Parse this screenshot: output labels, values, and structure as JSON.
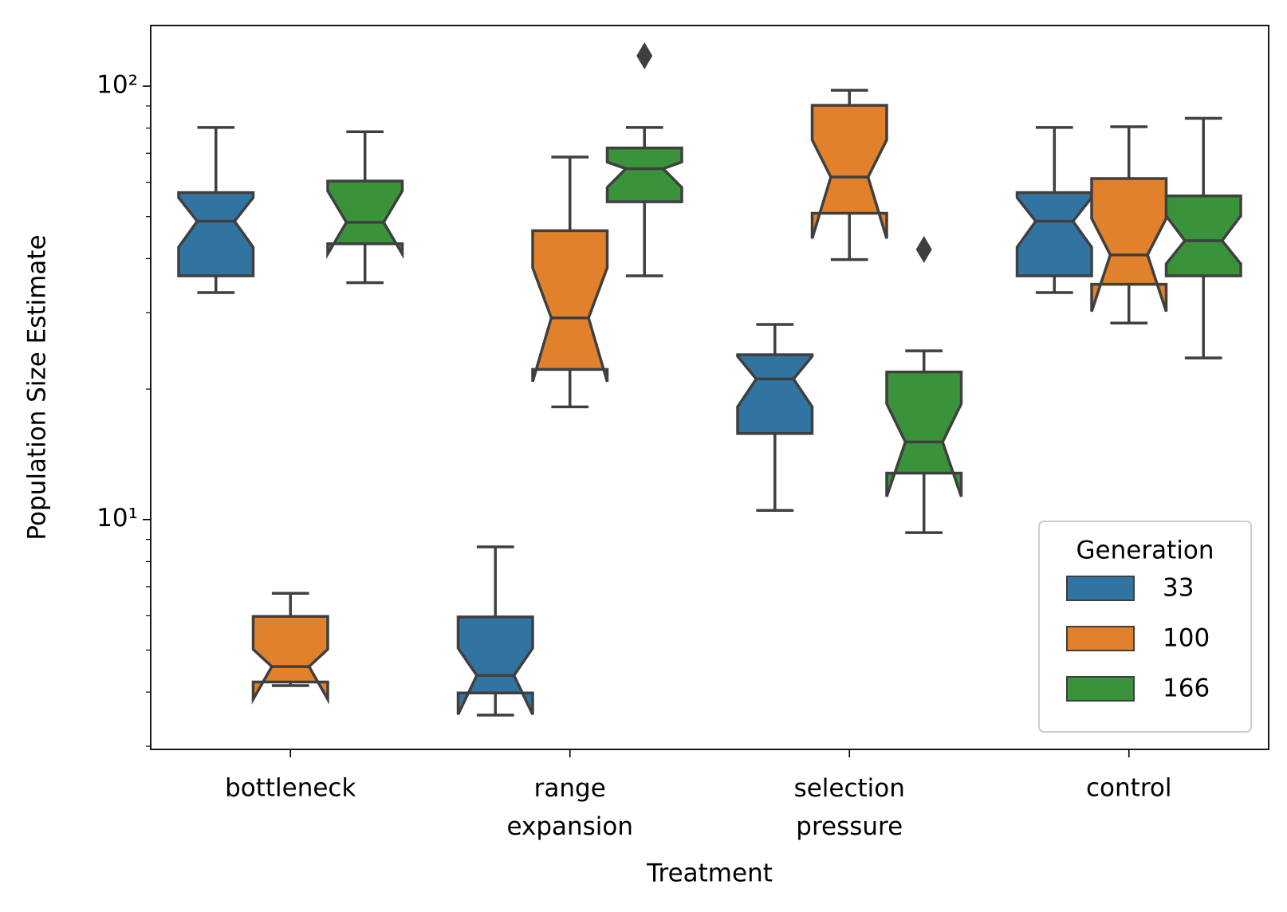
{
  "chart_data": {
    "type": "boxplot",
    "xlabel": "Treatment",
    "ylabel": "Population Size Estimate",
    "log_y": true,
    "notch": true,
    "categories": [
      "bottleneck",
      "range\nexpansion",
      "selection\npressure",
      "control"
    ],
    "ylim": [
      2.95,
      138
    ],
    "yticks": [
      {
        "value": 10,
        "label": "10¹"
      },
      {
        "value": 100,
        "label": "10²"
      }
    ],
    "yminorticks": [
      3,
      4,
      5,
      6,
      7,
      8,
      9,
      20,
      30,
      40,
      50,
      60,
      70,
      80,
      90
    ],
    "edge_color": "#3f3f3f",
    "legend": {
      "title": "Generation",
      "loc": "lower right"
    },
    "series": [
      {
        "name": "33",
        "color": "#3274a1",
        "boxes": [
          {
            "whislo": 33.4,
            "q1": 36.5,
            "med": 48.8,
            "q3": 56.8,
            "whishi": 80.3,
            "notchlo": 42.5,
            "notchhi": 55.3,
            "fliers": []
          },
          {
            "whislo": 3.54,
            "q1": 3.98,
            "med": 4.37,
            "q3": 5.96,
            "whishi": 8.65,
            "notchlo": 3.55,
            "notchhi": 5.05,
            "fliers": []
          },
          {
            "whislo": 10.5,
            "q1": 15.8,
            "med": 21.1,
            "q3": 24.0,
            "whishi": 28.2,
            "notchlo": 18.2,
            "notchhi": 23.8,
            "fliers": []
          },
          {
            "whislo": 33.4,
            "q1": 36.5,
            "med": 48.8,
            "q3": 56.8,
            "whishi": 80.3,
            "notchlo": 42.5,
            "notchhi": 55.3,
            "fliers": []
          }
        ]
      },
      {
        "name": "100",
        "color": "#e1812c",
        "boxes": [
          {
            "whislo": 4.14,
            "q1": 4.22,
            "med": 4.58,
            "q3": 5.98,
            "whishi": 6.76,
            "notchlo": 3.85,
            "notchhi": 5.02,
            "fliers": []
          },
          {
            "whislo": 18.2,
            "q1": 22.2,
            "med": 29.2,
            "q3": 46.4,
            "whishi": 68.6,
            "notchlo": 20.8,
            "notchhi": 38.1,
            "fliers": []
          },
          {
            "whislo": 39.8,
            "q1": 50.9,
            "med": 61.7,
            "q3": 90.3,
            "whishi": 97.8,
            "notchlo": 44.5,
            "notchhi": 75.2,
            "fliers": []
          },
          {
            "whislo": 28.4,
            "q1": 34.9,
            "med": 40.8,
            "q3": 61.2,
            "whishi": 80.6,
            "notchlo": 30.2,
            "notchhi": 49.5,
            "fliers": []
          }
        ]
      },
      {
        "name": "166",
        "color": "#3a923a",
        "boxes": [
          {
            "whislo": 35.2,
            "q1": 43.3,
            "med": 48.5,
            "q3": 60.4,
            "whishi": 78.5,
            "notchlo": 41.0,
            "notchhi": 57.3,
            "fliers": []
          },
          {
            "whislo": 36.5,
            "q1": 54.1,
            "med": 64.5,
            "q3": 72.0,
            "whishi": 80.3,
            "notchlo": 58.4,
            "notchhi": 66.8,
            "fliers": [
              117.5
            ]
          },
          {
            "whislo": 9.33,
            "q1": 12.8,
            "med": 15.1,
            "q3": 21.9,
            "whishi": 24.5,
            "notchlo": 11.3,
            "notchhi": 18.5,
            "fliers": [
              42.0
            ]
          },
          {
            "whislo": 23.6,
            "q1": 36.5,
            "med": 44.0,
            "q3": 55.8,
            "whishi": 84.3,
            "notchlo": 38.9,
            "notchhi": 50.2,
            "fliers": []
          }
        ]
      }
    ]
  }
}
